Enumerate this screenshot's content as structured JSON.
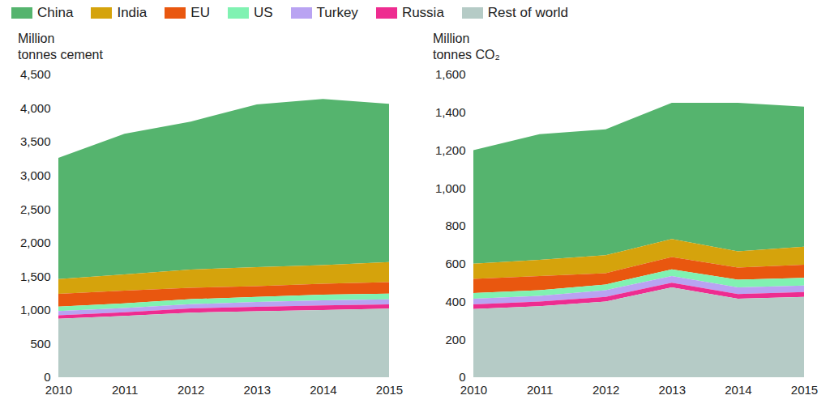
{
  "chart_data": [
    {
      "type": "area",
      "stacked": true,
      "grid": false,
      "legend": "top",
      "y_label": "Million tonnes cement",
      "x": [
        2010,
        2011,
        2012,
        2013,
        2014,
        2015
      ],
      "xlim": [
        2010,
        2015
      ],
      "xticks": [
        2010,
        2011,
        2012,
        2013,
        2014,
        2015
      ],
      "ylim": [
        0,
        4500
      ],
      "yticks": [
        0,
        500,
        {
          "value": 1000,
          "label": "1,000"
        },
        {
          "value": 1500,
          "label": "1,500"
        },
        {
          "value": 2000,
          "label": "2,000"
        },
        {
          "value": 2500,
          "label": "2,500"
        },
        {
          "value": 3000,
          "label": "3,000"
        },
        {
          "value": 3500,
          "label": "3,500"
        },
        {
          "value": 4000,
          "label": "4,000"
        },
        {
          "value": 4500,
          "label": "4,500"
        }
      ],
      "series": [
        {
          "name": "China",
          "color": "#55b46e",
          "values": [
            1800,
            2090,
            2200,
            2420,
            2470,
            2350
          ]
        },
        {
          "name": "India",
          "color": "#d5a30c",
          "values": [
            220,
            240,
            270,
            280,
            275,
            300
          ]
        },
        {
          "name": "EU",
          "color": "#e9570f",
          "values": [
            190,
            190,
            170,
            160,
            165,
            170
          ]
        },
        {
          "name": "US",
          "color": "#80f2b2",
          "values": [
            67,
            68,
            74,
            77,
            83,
            84
          ]
        },
        {
          "name": "Turkey",
          "color": "#b9a3f2",
          "values": [
            63,
            64,
            64,
            72,
            75,
            77
          ]
        },
        {
          "name": "Russia",
          "color": "#ee2c90",
          "values": [
            50,
            56,
            62,
            66,
            68,
            62
          ]
        },
        {
          "name": "Rest of world",
          "color": "#b5cbc6",
          "values": [
            870,
            910,
            960,
            980,
            1000,
            1020
          ]
        }
      ]
    },
    {
      "type": "area",
      "stacked": true,
      "grid": false,
      "y_label": "Million tonnes CO₂",
      "x": [
        2010,
        2011,
        2012,
        2013,
        2014,
        2015
      ],
      "xlim": [
        2010,
        2015
      ],
      "xticks": [
        2010,
        2011,
        2012,
        2013,
        2014,
        2015
      ],
      "ylim": [
        0,
        1600
      ],
      "yticks": [
        0,
        200,
        400,
        600,
        800,
        {
          "value": 1000,
          "label": "1,000"
        },
        {
          "value": 1200,
          "label": "1,200"
        },
        {
          "value": 1400,
          "label": "1,400"
        },
        {
          "value": 1600,
          "label": "1,600"
        }
      ],
      "series": [
        {
          "name": "China",
          "color": "#55b46e",
          "values": [
            600,
            665,
            665,
            720,
            785,
            740
          ]
        },
        {
          "name": "India",
          "color": "#d5a30c",
          "values": [
            80,
            85,
            95,
            95,
            85,
            95
          ]
        },
        {
          "name": "EU",
          "color": "#e9570f",
          "values": [
            75,
            75,
            60,
            65,
            65,
            70
          ]
        },
        {
          "name": "US",
          "color": "#80f2b2",
          "values": [
            30,
            30,
            30,
            35,
            40,
            40
          ]
        },
        {
          "name": "Turkey",
          "color": "#b9a3f2",
          "values": [
            30,
            30,
            35,
            35,
            35,
            35
          ]
        },
        {
          "name": "Russia",
          "color": "#ee2c90",
          "values": [
            25,
            25,
            25,
            25,
            25,
            25
          ]
        },
        {
          "name": "Rest of world",
          "color": "#b5cbc6",
          "values": [
            360,
            375,
            400,
            475,
            415,
            425
          ]
        }
      ]
    }
  ]
}
